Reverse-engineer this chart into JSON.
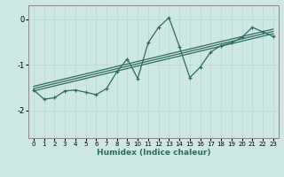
{
  "xlabel": "Humidex (Indice chaleur)",
  "xlim": [
    -0.5,
    23.5
  ],
  "ylim": [
    -2.6,
    0.3
  ],
  "yticks": [
    0,
    -1,
    -2
  ],
  "xticks": [
    0,
    1,
    2,
    3,
    4,
    5,
    6,
    7,
    8,
    9,
    10,
    11,
    12,
    13,
    14,
    15,
    16,
    17,
    18,
    19,
    20,
    21,
    22,
    23
  ],
  "bg_color": "#cde8e4",
  "line_color": "#2e6b5e",
  "grid_color": "#b8d8d4",
  "main_data_x": [
    0,
    1,
    2,
    3,
    4,
    5,
    6,
    7,
    8,
    9,
    10,
    11,
    12,
    13,
    14,
    15,
    16,
    17,
    18,
    19,
    20,
    21,
    22,
    23
  ],
  "main_data_y": [
    -1.55,
    -1.75,
    -1.72,
    -1.57,
    -1.55,
    -1.6,
    -1.65,
    -1.52,
    -1.15,
    -0.87,
    -1.3,
    -0.52,
    -0.18,
    0.03,
    -0.6,
    -1.28,
    -1.05,
    -0.72,
    -0.58,
    -0.52,
    -0.4,
    -0.18,
    -0.28,
    -0.38
  ],
  "trend_lines": [
    {
      "x0": 0,
      "y0": -1.57,
      "x1": 23,
      "y1": -0.32
    },
    {
      "x0": 0,
      "y0": -1.52,
      "x1": 23,
      "y1": -0.27
    },
    {
      "x0": 0,
      "y0": -1.47,
      "x1": 23,
      "y1": -0.22
    }
  ]
}
